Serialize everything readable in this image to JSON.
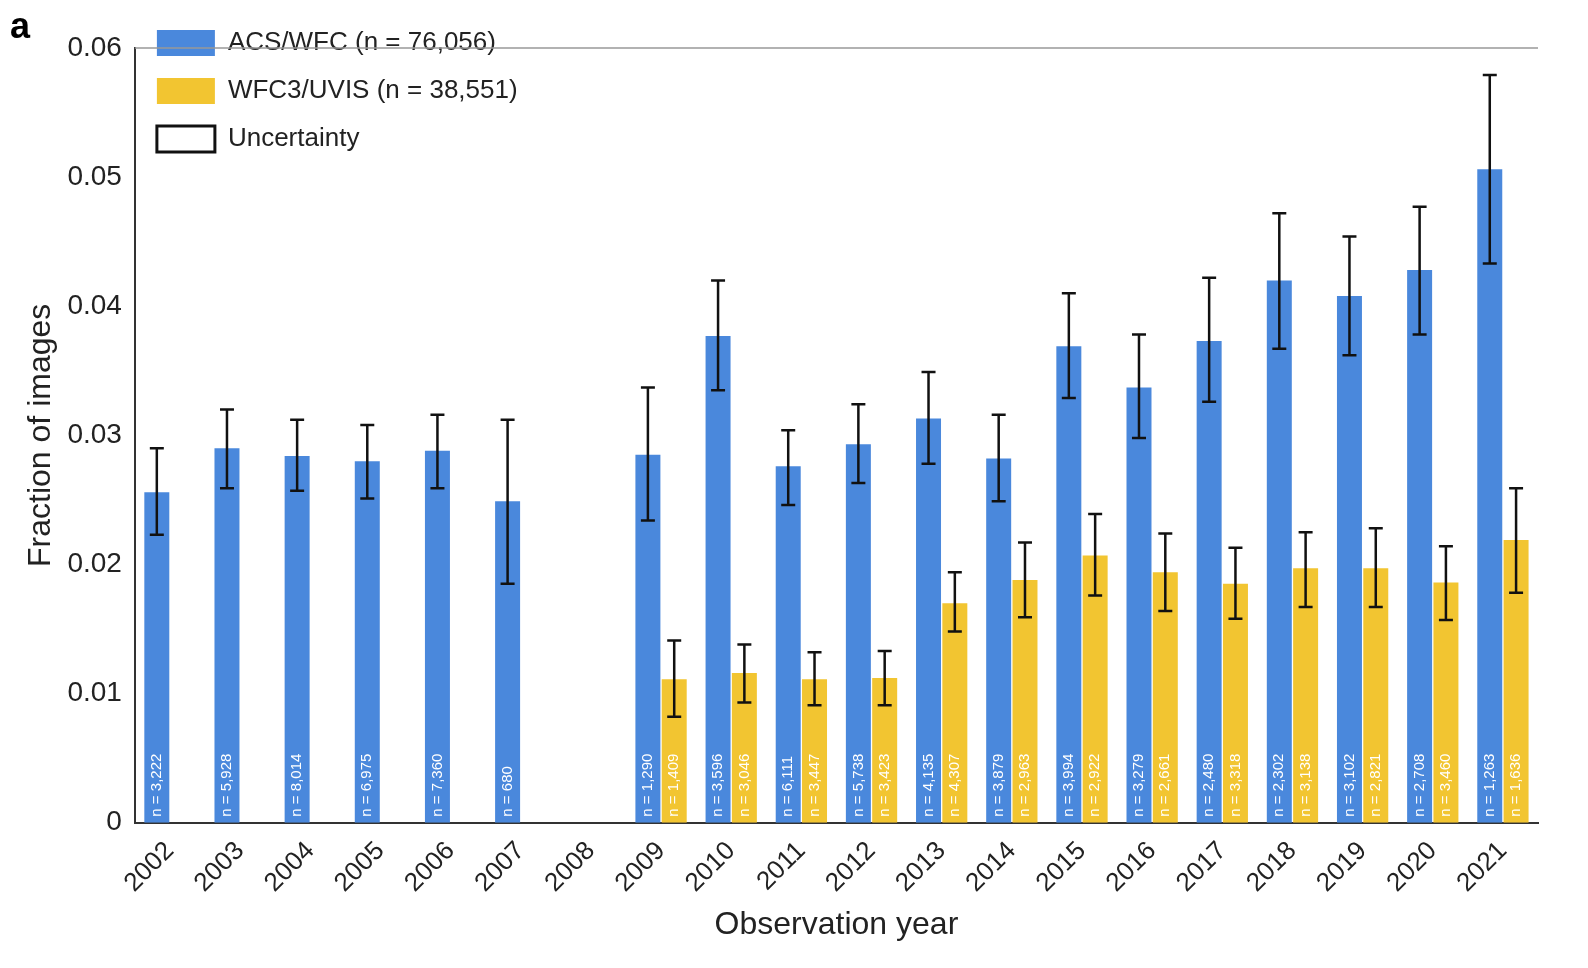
{
  "chart_data": {
    "type": "bar",
    "xlabel": "Observation year",
    "ylabel": "Fraction of images",
    "categories": [
      "2002",
      "2003",
      "2004",
      "2005",
      "2006",
      "2007",
      "2008",
      "2009",
      "2010",
      "2011",
      "2012",
      "2013",
      "2014",
      "2015",
      "2016",
      "2017",
      "2018",
      "2019",
      "2020",
      "2021"
    ],
    "series": [
      {
        "name": "ACS/WFC (n = 76,056)",
        "color": "#4a88dc",
        "values": [
          0.0256,
          0.029,
          0.0284,
          0.028,
          0.0288,
          0.0249,
          null,
          0.0285,
          0.0377,
          0.0276,
          0.0293,
          0.0313,
          0.0282,
          0.0369,
          0.0337,
          0.0373,
          0.042,
          0.0408,
          0.0428,
          0.0506
        ],
        "errors": [
          [
            0.0223,
            0.029
          ],
          [
            0.0259,
            0.032
          ],
          [
            0.0257,
            0.0312
          ],
          [
            0.0251,
            0.0308
          ],
          [
            0.0259,
            0.0316
          ],
          [
            0.0185,
            0.0312
          ],
          null,
          [
            0.0234,
            0.0337
          ],
          [
            0.0335,
            0.042
          ],
          [
            0.0246,
            0.0304
          ],
          [
            0.0263,
            0.0324
          ],
          [
            0.0278,
            0.0349
          ],
          [
            0.0249,
            0.0316
          ],
          [
            0.0329,
            0.041
          ],
          [
            0.0298,
            0.0378
          ],
          [
            0.0326,
            0.0422
          ],
          [
            0.0367,
            0.0472
          ],
          [
            0.0362,
            0.0454
          ],
          [
            0.0378,
            0.0477
          ],
          [
            0.0433,
            0.0579
          ]
        ]
      },
      {
        "name": "WFC3/UVIS (n = 38,551)",
        "color": "#f2c531",
        "values": [
          null,
          null,
          null,
          null,
          null,
          null,
          null,
          0.0111,
          0.0116,
          0.0111,
          0.0112,
          0.017,
          0.0188,
          0.0207,
          0.0194,
          0.0185,
          0.0197,
          0.0197,
          0.0186,
          0.0219
        ],
        "errors": [
          null,
          null,
          null,
          null,
          null,
          null,
          null,
          [
            0.0082,
            0.0141
          ],
          [
            0.0093,
            0.0138
          ],
          [
            0.0091,
            0.0132
          ],
          [
            0.0091,
            0.0133
          ],
          [
            0.0148,
            0.0194
          ],
          [
            0.0159,
            0.0217
          ],
          [
            0.0176,
            0.0239
          ],
          [
            0.0164,
            0.0224
          ],
          [
            0.0158,
            0.0213
          ],
          [
            0.0167,
            0.0225
          ],
          [
            0.0167,
            0.0228
          ],
          [
            0.0157,
            0.0214
          ],
          [
            0.0178,
            0.0259
          ]
        ]
      }
    ],
    "ylim": [
      0,
      0.06
    ],
    "yticks": [
      0,
      0.01,
      0.02,
      0.03,
      0.04,
      0.05,
      0.06
    ],
    "legend": "top left",
    "grid": false,
    "annotations": [
      "a",
      "Uncertainty",
      {
        "text": "n = 3,222",
        "x": "2002",
        "y": 0
      },
      {
        "text": "n = 5,928",
        "x": "2003",
        "y": 0
      },
      {
        "text": "n = 8,014",
        "x": "2004",
        "y": 0
      },
      {
        "text": "n = 6,975",
        "x": "2005",
        "y": 0
      },
      {
        "text": "n = 7,360",
        "x": "2006",
        "y": 0
      },
      {
        "text": "n = 680",
        "x": "2007",
        "y": 0
      },
      {
        "text": "n = 1,290",
        "x": "2009",
        "y": 0
      },
      {
        "text": "n = 1,409",
        "x": "2009",
        "y": 0
      },
      {
        "text": "n = 3,596",
        "x": "2010",
        "y": 0
      },
      {
        "text": "n = 3,046",
        "x": "2010",
        "y": 0
      },
      {
        "text": "n = 6,111",
        "x": "2011",
        "y": 0
      },
      {
        "text": "n = 3,447",
        "x": "2011",
        "y": 0
      },
      {
        "text": "n = 5,738",
        "x": "2012",
        "y": 0
      },
      {
        "text": "n = 3,423",
        "x": "2012",
        "y": 0
      },
      {
        "text": "n = 4,135",
        "x": "2013",
        "y": 0
      },
      {
        "text": "n = 4,307",
        "x": "2013",
        "y": 0
      },
      {
        "text": "n = 3,879",
        "x": "2014",
        "y": 0
      },
      {
        "text": "n = 2,963",
        "x": "2014",
        "y": 0
      },
      {
        "text": "n = 3,994",
        "x": "2015",
        "y": 0
      },
      {
        "text": "n = 2,922",
        "x": "2015",
        "y": 0
      },
      {
        "text": "n = 3,279",
        "x": "2016",
        "y": 0
      },
      {
        "text": "n = 2,661",
        "x": "2016",
        "y": 0
      },
      {
        "text": "n = 2,480",
        "x": "2017",
        "y": 0
      },
      {
        "text": "n = 3,318",
        "x": "2017",
        "y": 0
      },
      {
        "text": "n = 2,302",
        "x": "2018",
        "y": 0
      },
      {
        "text": "n = 3,138",
        "x": "2018",
        "y": 0
      },
      {
        "text": "n = 3,102",
        "x": "2019",
        "y": 0
      },
      {
        "text": "n = 2,821",
        "x": "2019",
        "y": 0
      },
      {
        "text": "n = 2,708",
        "x": "2020",
        "y": 0
      },
      {
        "text": "n = 3,460",
        "x": "2020",
        "y": 0
      },
      {
        "text": "n = 1,263",
        "x": "2021",
        "y": 0
      },
      {
        "text": "n = 1,636",
        "x": "2021",
        "y": 0
      }
    ]
  }
}
